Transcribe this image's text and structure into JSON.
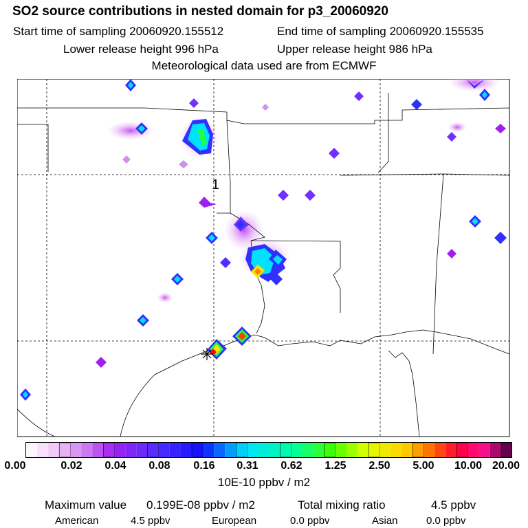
{
  "header": {
    "title": "SO2 source contributions in nested domain for p3_20060920",
    "start_time": "Start time of sampling 20060920.155512",
    "end_time": "End time of sampling 20060920.155535",
    "lower_release": "Lower release height  996 hPa",
    "upper_release": "Upper release height  986 hPa",
    "met_data": "Meteorological data used are from ECMWF"
  },
  "map": {
    "grid_label": "1",
    "marker": "receptor-star"
  },
  "colorbar": {
    "ticks": [
      "0.00",
      "0.02",
      "0.04",
      "0.08",
      "0.16",
      "0.31",
      "0.62",
      "1.25",
      "2.50",
      "5.00",
      "10.00",
      "20.00"
    ],
    "units": "10E-10 ppbv / m2"
  },
  "stats": {
    "max_label": "Maximum value",
    "max_value": "0.199E-08 ppbv / m2",
    "total_label": "Total mixing ratio",
    "total_value": "4.5 ppbv"
  },
  "sources": [
    {
      "name": "American",
      "value": "4.5 ppbv"
    },
    {
      "name": "European",
      "value": "0.0 ppbv"
    },
    {
      "name": "Asian",
      "value": "0.0 ppbv"
    }
  ],
  "colors": {
    "low": "#f0c8f8",
    "mid_violet": "#a020f0",
    "blue": "#3030ff",
    "cyan": "#00e0ff",
    "green": "#20ff40",
    "yellow": "#ffe000",
    "orange": "#ff8000",
    "red": "#ff0000",
    "magenta": "#d000a0"
  }
}
